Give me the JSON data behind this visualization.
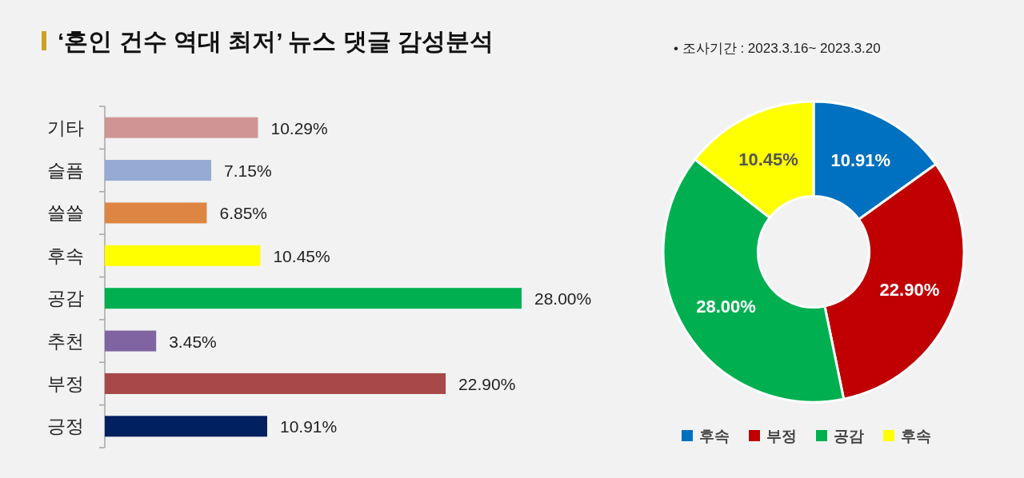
{
  "chart_data": [
    {
      "type": "bar",
      "orientation": "horizontal",
      "title": "‘혼인 건수 역대 최저’ 뉴스 댓글 감성분석",
      "categories": [
        "기타",
        "슬픔",
        "쓸쓸",
        "후속",
        "공감",
        "추천",
        "부정",
        "긍정"
      ],
      "values": [
        10.29,
        7.15,
        6.85,
        10.45,
        28.0,
        3.45,
        22.9,
        10.91
      ],
      "colors": [
        "#d09494",
        "#95abd3",
        "#dd8643",
        "#ffff00",
        "#00b050",
        "#8064a2",
        "#a84848",
        "#002060"
      ],
      "value_labels": [
        "10.29%",
        "7.15%",
        "6.85%",
        "10.45%",
        "28.00%",
        "3.45%",
        "22.90%",
        "10.91%"
      ]
    },
    {
      "type": "donut",
      "annotations": [
        "•  조사기간 : 2023.3.16~ 2023.3.20"
      ],
      "categories": [
        "후속",
        "부정",
        "공감",
        "후속"
      ],
      "values": [
        10.91,
        22.9,
        28.0,
        10.45
      ],
      "colors": [
        "#0070c0",
        "#c00000",
        "#00b050",
        "#ffff00"
      ],
      "value_labels": [
        "10.91%",
        "22.90%",
        "28.00%",
        "10.45%"
      ],
      "legend": "bottom"
    }
  ]
}
